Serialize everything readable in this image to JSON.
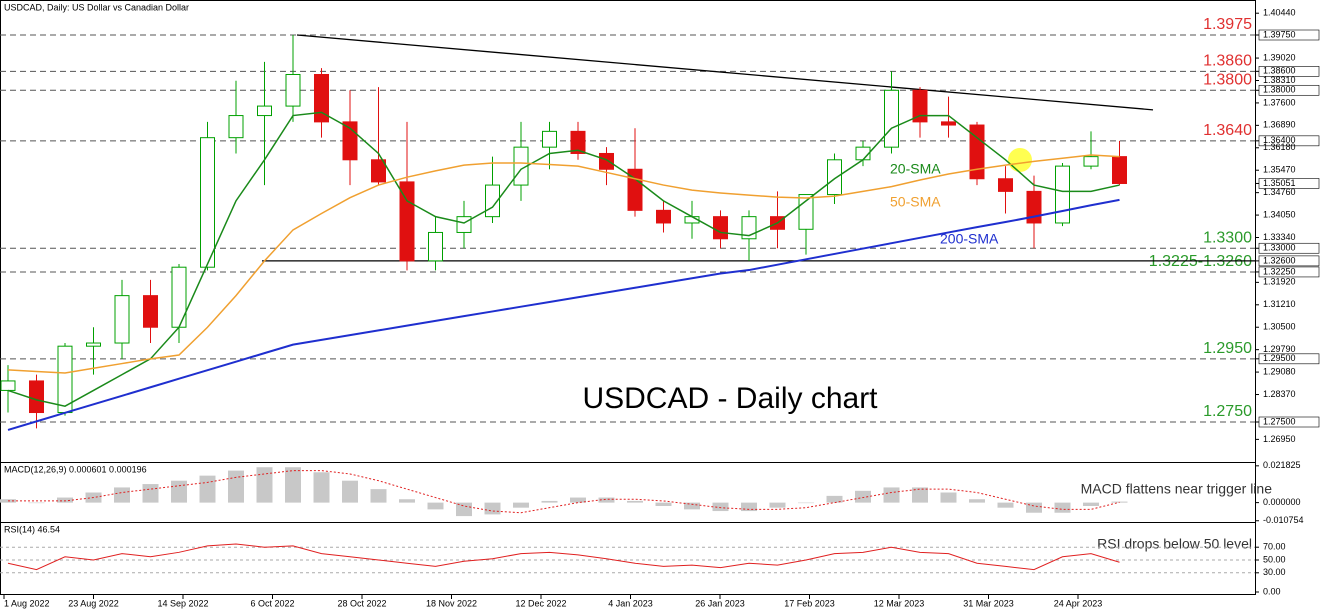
{
  "chart_data": {
    "type": "candlestick",
    "header": "USDCAD, Daily:  US Dollar vs Canadian Dollar",
    "title": "USDCAD - Daily chart",
    "ylim": [
      1.26234,
      1.40858
    ],
    "yticks": [
      {
        "value": 1.4044,
        "label": "1.40440"
      },
      {
        "value": 1.3975,
        "label": "1.39750",
        "boxed": true
      },
      {
        "value": 1.3902,
        "label": "1.39020"
      },
      {
        "value": 1.386,
        "label": "1.38600",
        "boxed": true
      },
      {
        "value": 1.3831,
        "label": "1.38310"
      },
      {
        "value": 1.38,
        "label": "1.38000",
        "boxed": true
      },
      {
        "value": 1.376,
        "label": "1.37600"
      },
      {
        "value": 1.3689,
        "label": "1.36890"
      },
      {
        "value": 1.364,
        "label": "1.36400",
        "boxed": true
      },
      {
        "value": 1.3618,
        "label": "1.36180"
      },
      {
        "value": 1.3547,
        "label": "1.35470"
      },
      {
        "value": 1.35051,
        "label": "1.35051",
        "boxed": true
      },
      {
        "value": 1.3476,
        "label": "1.34760"
      },
      {
        "value": 1.3405,
        "label": "1.34050"
      },
      {
        "value": 1.3334,
        "label": "1.33340"
      },
      {
        "value": 1.33,
        "label": "1.33000",
        "boxed": true
      },
      {
        "value": 1.326,
        "label": "1.32600",
        "boxed": true
      },
      {
        "value": 1.3225,
        "label": "1.32250",
        "boxed": true
      },
      {
        "value": 1.3192,
        "label": "1.31920"
      },
      {
        "value": 1.3121,
        "label": "1.31210"
      },
      {
        "value": 1.305,
        "label": "1.30500"
      },
      {
        "value": 1.2979,
        "label": "1.29790"
      },
      {
        "value": 1.295,
        "label": "1.29500",
        "boxed": true
      },
      {
        "value": 1.2908,
        "label": "1.29080"
      },
      {
        "value": 1.2837,
        "label": "1.28370"
      },
      {
        "value": 1.275,
        "label": "1.27500",
        "boxed": true
      },
      {
        "value": 1.2695,
        "label": "1.26950"
      }
    ],
    "xlabels": [
      "1 Aug 2022",
      "23 Aug 2022",
      "14 Sep 2022",
      "6 Oct 2022",
      "28 Oct 2022",
      "18 Nov 2022",
      "12 Dec 2022",
      "4 Jan 2023",
      "26 Jan 2023",
      "17 Feb 2023",
      "12 Mar 2023",
      "31 Mar 2023",
      "24 Apr 2023"
    ],
    "up_color": "#00a000",
    "down_color": "#e01010",
    "ohlc": [
      [
        1.285,
        1.293,
        1.278,
        1.288
      ],
      [
        1.288,
        1.29,
        1.273,
        1.278
      ],
      [
        1.278,
        1.3,
        1.277,
        1.299
      ],
      [
        1.299,
        1.305,
        1.29,
        1.3
      ],
      [
        1.3,
        1.32,
        1.295,
        1.315
      ],
      [
        1.315,
        1.32,
        1.3,
        1.305
      ],
      [
        1.305,
        1.325,
        1.3,
        1.324
      ],
      [
        1.324,
        1.37,
        1.323,
        1.365
      ],
      [
        1.365,
        1.383,
        1.36,
        1.372
      ],
      [
        1.372,
        1.389,
        1.35,
        1.375
      ],
      [
        1.375,
        1.3975,
        1.37,
        1.385
      ],
      [
        1.385,
        1.387,
        1.365,
        1.37
      ],
      [
        1.37,
        1.38,
        1.35,
        1.358
      ],
      [
        1.358,
        1.381,
        1.35,
        1.351
      ],
      [
        1.351,
        1.37,
        1.323,
        1.326
      ],
      [
        1.326,
        1.34,
        1.323,
        1.335
      ],
      [
        1.335,
        1.345,
        1.33,
        1.34
      ],
      [
        1.34,
        1.359,
        1.338,
        1.35
      ],
      [
        1.35,
        1.37,
        1.345,
        1.362
      ],
      [
        1.362,
        1.37,
        1.355,
        1.367
      ],
      [
        1.367,
        1.37,
        1.358,
        1.36
      ],
      [
        1.36,
        1.362,
        1.35,
        1.355
      ],
      [
        1.355,
        1.368,
        1.34,
        1.342
      ],
      [
        1.342,
        1.345,
        1.335,
        1.338
      ],
      [
        1.338,
        1.345,
        1.333,
        1.34
      ],
      [
        1.34,
        1.342,
        1.33,
        1.333
      ],
      [
        1.333,
        1.342,
        1.326,
        1.34
      ],
      [
        1.34,
        1.348,
        1.33,
        1.336
      ],
      [
        1.336,
        1.347,
        1.328,
        1.347
      ],
      [
        1.347,
        1.36,
        1.344,
        1.358
      ],
      [
        1.358,
        1.364,
        1.356,
        1.362
      ],
      [
        1.362,
        1.386,
        1.36,
        1.38
      ],
      [
        1.38,
        1.381,
        1.365,
        1.37
      ],
      [
        1.37,
        1.378,
        1.365,
        1.369
      ],
      [
        1.369,
        1.37,
        1.35,
        1.352
      ],
      [
        1.352,
        1.356,
        1.341,
        1.348
      ],
      [
        1.348,
        1.353,
        1.33,
        1.338
      ],
      [
        1.338,
        1.357,
        1.337,
        1.356
      ],
      [
        1.356,
        1.367,
        1.355,
        1.359
      ],
      [
        1.359,
        1.364,
        1.35,
        1.3505
      ]
    ],
    "series": [
      {
        "name": "20-SMA",
        "color": "#1a8a1a",
        "values": [
          1.285,
          1.282,
          1.28,
          1.285,
          1.29,
          1.295,
          1.305,
          1.325,
          1.345,
          1.358,
          1.372,
          1.373,
          1.368,
          1.36,
          1.345,
          1.34,
          1.338,
          1.343,
          1.355,
          1.36,
          1.361,
          1.358,
          1.352,
          1.345,
          1.34,
          1.335,
          1.334,
          1.338,
          1.345,
          1.352,
          1.358,
          1.368,
          1.372,
          1.372,
          1.365,
          1.358,
          1.35,
          1.348,
          1.348,
          1.35
        ]
      },
      {
        "name": "50-SMA",
        "color": "#f0a030",
        "values": [
          1.2915,
          1.291,
          1.2905,
          1.292,
          1.2935,
          1.295,
          1.2962,
          1.305,
          1.315,
          1.326,
          1.3358,
          1.341,
          1.346,
          1.35,
          1.3525,
          1.3545,
          1.3563,
          1.357,
          1.357,
          1.3565,
          1.356,
          1.354,
          1.352,
          1.35,
          1.3484,
          1.3475,
          1.3468,
          1.3462,
          1.3459,
          1.3465,
          1.348,
          1.3495,
          1.3516,
          1.3535,
          1.355,
          1.3563,
          1.3575,
          1.3585,
          1.3595,
          1.359
        ]
      },
      {
        "name": "200-SMA",
        "color": "#1f2fcf",
        "values": [
          1.2725,
          1.2752,
          1.2779,
          1.2806,
          1.2833,
          1.286,
          1.2887,
          1.2914,
          1.2941,
          1.2968,
          1.2995,
          1.301,
          1.3025,
          1.304,
          1.3055,
          1.307,
          1.3085,
          1.31,
          1.3115,
          1.313,
          1.3145,
          1.316,
          1.3175,
          1.319,
          1.3205,
          1.322,
          1.3231,
          1.3248,
          1.3265,
          1.3282,
          1.3299,
          1.3316,
          1.3333,
          1.335,
          1.3367,
          1.3383,
          1.34,
          1.3418,
          1.3436,
          1.3453
        ]
      }
    ],
    "levels": [
      {
        "value": 1.3975,
        "label": "1.3975",
        "color": "#e03030"
      },
      {
        "value": 1.386,
        "label": "1.3860",
        "color": "#e03030"
      },
      {
        "value": 1.38,
        "label": "1.3800",
        "color": "#e03030"
      },
      {
        "value": 1.364,
        "label": "1.3640",
        "color": "#e03030"
      },
      {
        "value": 1.33,
        "label": "1.3300",
        "color": "#2a9a2a"
      },
      {
        "value": 1.3225,
        "label": "1.3225-1.3260",
        "color": "#2a9a2a"
      },
      {
        "value": 1.295,
        "label": "1.2950",
        "color": "#2a9a2a"
      },
      {
        "value": 1.275,
        "label": "1.2750",
        "color": "#2a9a2a"
      }
    ],
    "support": 1.326,
    "trendline": [
      1.3975,
      1.3738
    ],
    "macd": {
      "header": "MACD(12,26,9) 0.000601 0.000196",
      "note": "MACD flattens near trigger line",
      "ylim": [
        -0.0115,
        0.0235
      ],
      "yticks": [
        {
          "value": 0.021825,
          "label": "0.021825"
        },
        {
          "value": 0,
          "label": "0.000000"
        },
        {
          "value": -0.010754,
          "label": "-0.010754"
        }
      ],
      "hist": [
        0.002,
        0,
        0.003,
        0.006,
        0.009,
        0.011,
        0.013,
        0.016,
        0.019,
        0.021,
        0.021,
        0.018,
        0.013,
        0.008,
        0.002,
        -0.004,
        -0.008,
        -0.007,
        -0.003,
        0.001,
        0.003,
        0.003,
        0.001,
        -0.002,
        -0.004,
        -0.005,
        -0.005,
        -0.003,
        0,
        0.004,
        0.007,
        0.009,
        0.009,
        0.006,
        0.002,
        -0.003,
        -0.006,
        -0.006,
        -0.002,
        0.000601
      ],
      "signal": [
        0.001,
        0.001,
        0.001,
        0.003,
        0.006,
        0.008,
        0.01,
        0.012,
        0.015,
        0.017,
        0.019,
        0.019,
        0.017,
        0.013,
        0.008,
        0.003,
        -0.002,
        -0.005,
        -0.006,
        -0.003,
        0,
        0.002,
        0.002,
        0.001,
        -0.001,
        -0.003,
        -0.004,
        -0.004,
        -0.003,
        0,
        0.003,
        0.006,
        0.008,
        0.008,
        0.006,
        0.002,
        -0.002,
        -0.004,
        -0.004,
        0.000196
      ]
    },
    "rsi": {
      "header": "RSI(14) 46.54",
      "note": "RSI drops below 50 level",
      "ylim": [
        0,
        100
      ],
      "yticks": [
        {
          "value": 70,
          "label": "70.00"
        },
        {
          "value": 50,
          "label": "50.00"
        },
        {
          "value": 30,
          "label": "30.00"
        },
        {
          "value": 0,
          "label": "0.00"
        }
      ],
      "values": [
        45,
        35,
        55,
        50,
        60,
        55,
        62,
        72,
        75,
        70,
        72,
        60,
        55,
        50,
        45,
        40,
        48,
        52,
        60,
        62,
        58,
        52,
        45,
        40,
        42,
        38,
        45,
        42,
        50,
        60,
        62,
        70,
        62,
        60,
        45,
        40,
        35,
        55,
        60,
        46.54
      ]
    }
  }
}
